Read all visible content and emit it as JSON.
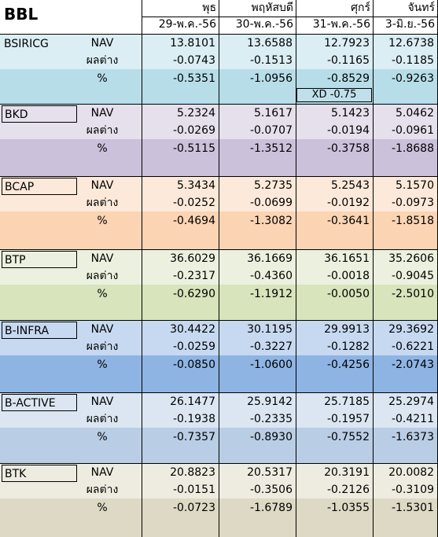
{
  "title": "BBL",
  "columns": [
    {
      "day": "พุธ",
      "date": "29-พ.ค.-56"
    },
    {
      "day": "พฤหัสบดี",
      "date": "30-พ.ค.-56"
    },
    {
      "day": "ศุกร์",
      "date": "31-พ.ค.-56"
    },
    {
      "day": "จันทร์",
      "date": "3-มิ.ย.-56"
    }
  ],
  "row_labels": [
    "NAV",
    "ผลต่าง",
    "%"
  ],
  "funds": [
    {
      "name": "BSIRICG",
      "colors": [
        "#daeef3",
        "#daeef3",
        "#b7dde8"
      ],
      "nav": [
        "13.8101",
        "13.6588",
        "12.7923",
        "12.6738"
      ],
      "diff": [
        "-0.0743",
        "-0.1513",
        "-0.1165",
        "-0.1185"
      ],
      "pct": [
        "-0.5351",
        "-1.0956",
        "-0.8529",
        "-0.9263"
      ],
      "note": "XD -0.75"
    },
    {
      "name": "BKD",
      "colors": [
        "#e5e0ec",
        "#e5e0ec",
        "#ccc1da"
      ],
      "nav": [
        "5.2324",
        "5.1617",
        "5.1423",
        "5.0462"
      ],
      "diff": [
        "-0.0269",
        "-0.0707",
        "-0.0194",
        "-0.0961"
      ],
      "pct": [
        "-0.5115",
        "-1.3512",
        "-0.3758",
        "-1.8688"
      ]
    },
    {
      "name": "BCAP",
      "colors": [
        "#fde9d9",
        "#fde9d9",
        "#fbd4b4"
      ],
      "nav": [
        "5.3434",
        "5.2735",
        "5.2543",
        "5.1570"
      ],
      "diff": [
        "-0.0252",
        "-0.0699",
        "-0.0192",
        "-0.0973"
      ],
      "pct": [
        "-0.4694",
        "-1.3082",
        "-0.3641",
        "-1.8518"
      ]
    },
    {
      "name": "BTP",
      "colors": [
        "#ebf1de",
        "#ebf1de",
        "#d7e4bc"
      ],
      "nav": [
        "36.6029",
        "36.1669",
        "36.1651",
        "35.2606"
      ],
      "diff": [
        "-0.2317",
        "-0.4360",
        "-0.0018",
        "-0.9045"
      ],
      "pct": [
        "-0.6290",
        "-1.1912",
        "-0.0050",
        "-2.5010"
      ]
    },
    {
      "name": "B-INFRA",
      "colors": [
        "#c6d9f1",
        "#c6d9f1",
        "#8eb4e3"
      ],
      "nav": [
        "30.4422",
        "30.1195",
        "29.9913",
        "29.3692"
      ],
      "diff": [
        "-0.0259",
        "-0.3227",
        "-0.1282",
        "-0.6221"
      ],
      "pct": [
        "-0.0850",
        "-1.0600",
        "-0.4256",
        "-2.0743"
      ]
    },
    {
      "name": "B-ACTIVE",
      "colors": [
        "#dce6f2",
        "#dce6f2",
        "#b9cde5"
      ],
      "nav": [
        "26.1477",
        "25.9142",
        "25.7185",
        "25.2974"
      ],
      "diff": [
        "-0.1938",
        "-0.2335",
        "-0.1957",
        "-0.4211"
      ],
      "pct": [
        "-0.7357",
        "-0.8930",
        "-0.7552",
        "-1.6373"
      ]
    },
    {
      "name": "BTK",
      "colors": [
        "#eeece1",
        "#eeece1",
        "#ddd9c4"
      ],
      "nav": [
        "20.8823",
        "20.5317",
        "20.3191",
        "20.0082"
      ],
      "diff": [
        "-0.0151",
        "-0.3506",
        "-0.2126",
        "-0.3109"
      ],
      "pct": [
        "-0.0723",
        "-1.6789",
        "-1.0355",
        "-1.5301"
      ]
    }
  ]
}
